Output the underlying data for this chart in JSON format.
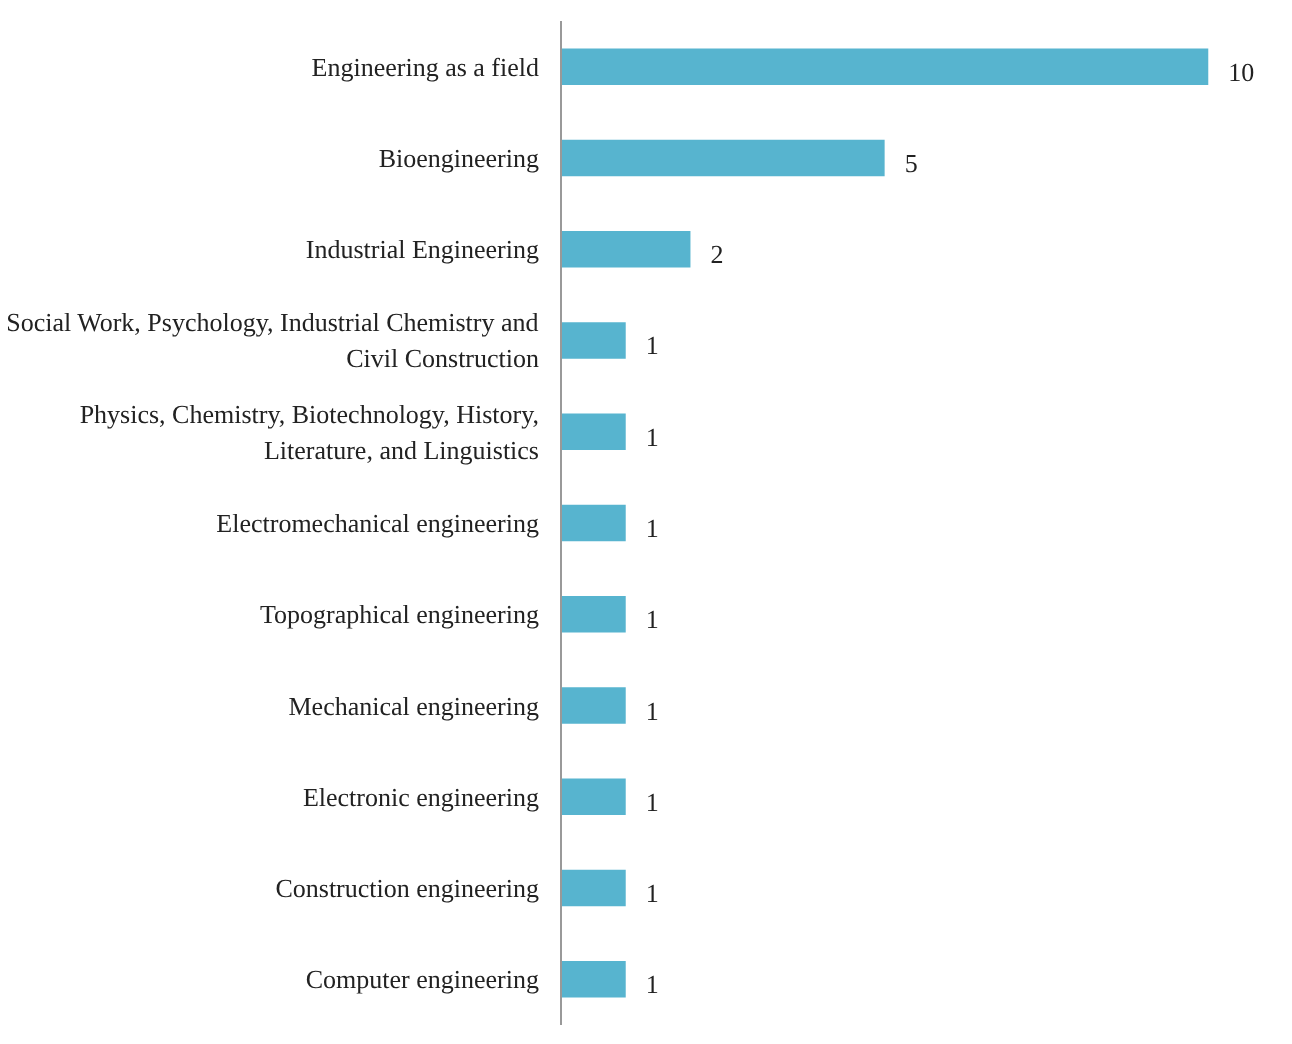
{
  "chart_data": {
    "type": "bar",
    "orientation": "horizontal",
    "categories": [
      "Engineering as a field",
      "Bioengineering",
      "Industrial Engineering",
      "Social Work, Psychology, Industrial Chemistry and\nCivil Construction",
      "Physics, Chemistry, Biotechnology, History,\nLiterature, and Linguistics",
      "Electromechanical engineering",
      "Topographical engineering",
      "Mechanical engineering",
      "Electronic engineering",
      "Construction engineering",
      "Computer engineering"
    ],
    "values": [
      10,
      5,
      2,
      1,
      1,
      1,
      1,
      1,
      1,
      1,
      1
    ],
    "color": "#57b4cf",
    "data_labels": true
  }
}
